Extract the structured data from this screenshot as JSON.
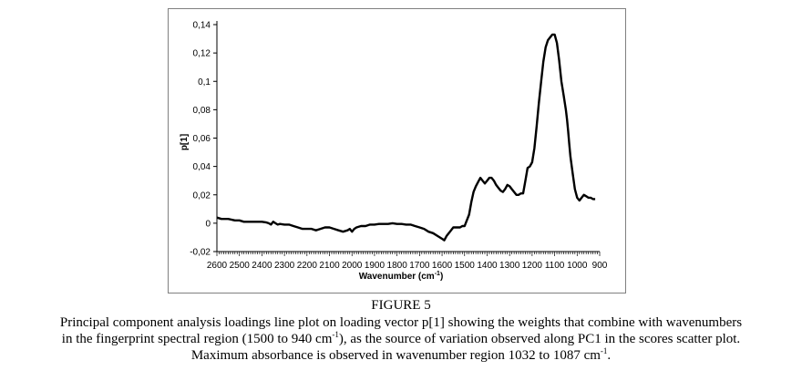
{
  "chart_data": {
    "type": "line",
    "xlabel": "Wavenumber (cm",
    "xlabel_sup": "-1",
    "xlabel_end": ")",
    "ylabel": "p[1]",
    "xlim": [
      2600,
      900
    ],
    "ylim": [
      -0.02,
      0.14
    ],
    "x_reversed": true,
    "grid": false,
    "x_ticks": [
      "2600",
      "2500",
      "2400",
      "2300",
      "2200",
      "2100",
      "2000",
      "1900",
      "1800",
      "1700",
      "1600",
      "1500",
      "1400",
      "1300",
      "1200",
      "1100",
      "1000",
      "900"
    ],
    "y_ticks": [
      "-0,02",
      "0",
      "0,02",
      "0,04",
      "0,06",
      "0,08",
      "0,1",
      "0,12",
      "0,14"
    ],
    "series": [
      {
        "color": "#000000",
        "x": [
          2610,
          2580,
          2550,
          2520,
          2500,
          2480,
          2450,
          2420,
          2400,
          2380,
          2370,
          2360,
          2350,
          2340,
          2330,
          2320,
          2300,
          2280,
          2260,
          2240,
          2220,
          2200,
          2180,
          2160,
          2140,
          2120,
          2100,
          2080,
          2060,
          2040,
          2020,
          2010,
          2000,
          1990,
          1980,
          1960,
          1940,
          1920,
          1900,
          1880,
          1860,
          1840,
          1820,
          1800,
          1780,
          1760,
          1740,
          1720,
          1700,
          1680,
          1660,
          1640,
          1620,
          1600,
          1590,
          1580,
          1570,
          1560,
          1550,
          1540,
          1530,
          1520,
          1510,
          1500,
          1490,
          1480,
          1470,
          1460,
          1450,
          1440,
          1430,
          1420,
          1410,
          1400,
          1390,
          1380,
          1370,
          1360,
          1350,
          1340,
          1330,
          1320,
          1310,
          1300,
          1290,
          1280,
          1270,
          1260,
          1250,
          1240,
          1230,
          1220,
          1210,
          1200,
          1190,
          1180,
          1170,
          1160,
          1150,
          1140,
          1130,
          1120,
          1110,
          1100,
          1090,
          1080,
          1070,
          1060,
          1050,
          1045,
          1040,
          1035,
          1030,
          1020,
          1010,
          1000,
          990,
          980,
          970,
          960,
          950,
          940,
          930,
          920
        ],
        "y": [
          0.004,
          0.003,
          0.003,
          0.002,
          0.002,
          0.001,
          0.001,
          0.001,
          0.001,
          0.0005,
          0,
          -0.001,
          0.001,
          0.0,
          -0.001,
          -0.0005,
          -0.001,
          -0.001,
          -0.002,
          -0.003,
          -0.004,
          -0.004,
          -0.004,
          -0.005,
          -0.004,
          -0.003,
          -0.003,
          -0.004,
          -0.005,
          -0.006,
          -0.005,
          -0.004,
          -0.006,
          -0.004,
          -0.003,
          -0.002,
          -0.002,
          -0.001,
          -0.001,
          -0.0005,
          -0.0005,
          -0.0005,
          0,
          -0.0005,
          -0.0005,
          -0.001,
          -0.001,
          -0.002,
          -0.003,
          -0.004,
          -0.006,
          -0.007,
          -0.009,
          -0.011,
          -0.012,
          -0.009,
          -0.007,
          -0.005,
          -0.003,
          -0.003,
          -0.003,
          -0.003,
          -0.002,
          -0.002,
          0.002,
          0.006,
          0.015,
          0.022,
          0.026,
          0.029,
          0.032,
          0.03,
          0.028,
          0.03,
          0.032,
          0.032,
          0.03,
          0.027,
          0.025,
          0.023,
          0.022,
          0.024,
          0.027,
          0.026,
          0.024,
          0.022,
          0.02,
          0.02,
          0.021,
          0.021,
          0.03,
          0.039,
          0.04,
          0.043,
          0.053,
          0.068,
          0.085,
          0.1,
          0.114,
          0.124,
          0.129,
          0.131,
          0.133,
          0.133,
          0.127,
          0.115,
          0.1,
          0.09,
          0.08,
          0.073,
          0.065,
          0.056,
          0.047,
          0.035,
          0.024,
          0.018,
          0.016,
          0.018,
          0.02,
          0.019,
          0.018,
          0.018,
          0.017,
          0.017
        ]
      }
    ]
  },
  "figure": {
    "title": "FIGURE 5",
    "line1_a": "Principal component analysis loadings line plot on loading vector p[1] showing the weights that combine with wavenumbers",
    "line2_a": "in the fingerprint spectral region (1500 to 940 cm",
    "line2_sup": "-1",
    "line2_b": "), as the source of variation observed along PC1 in the scores scatter plot.",
    "line3_a": "Maximum absorbance is observed in wavenumber region 1032 to 1087 cm",
    "line3_sup": "-1",
    "line3_b": "."
  }
}
